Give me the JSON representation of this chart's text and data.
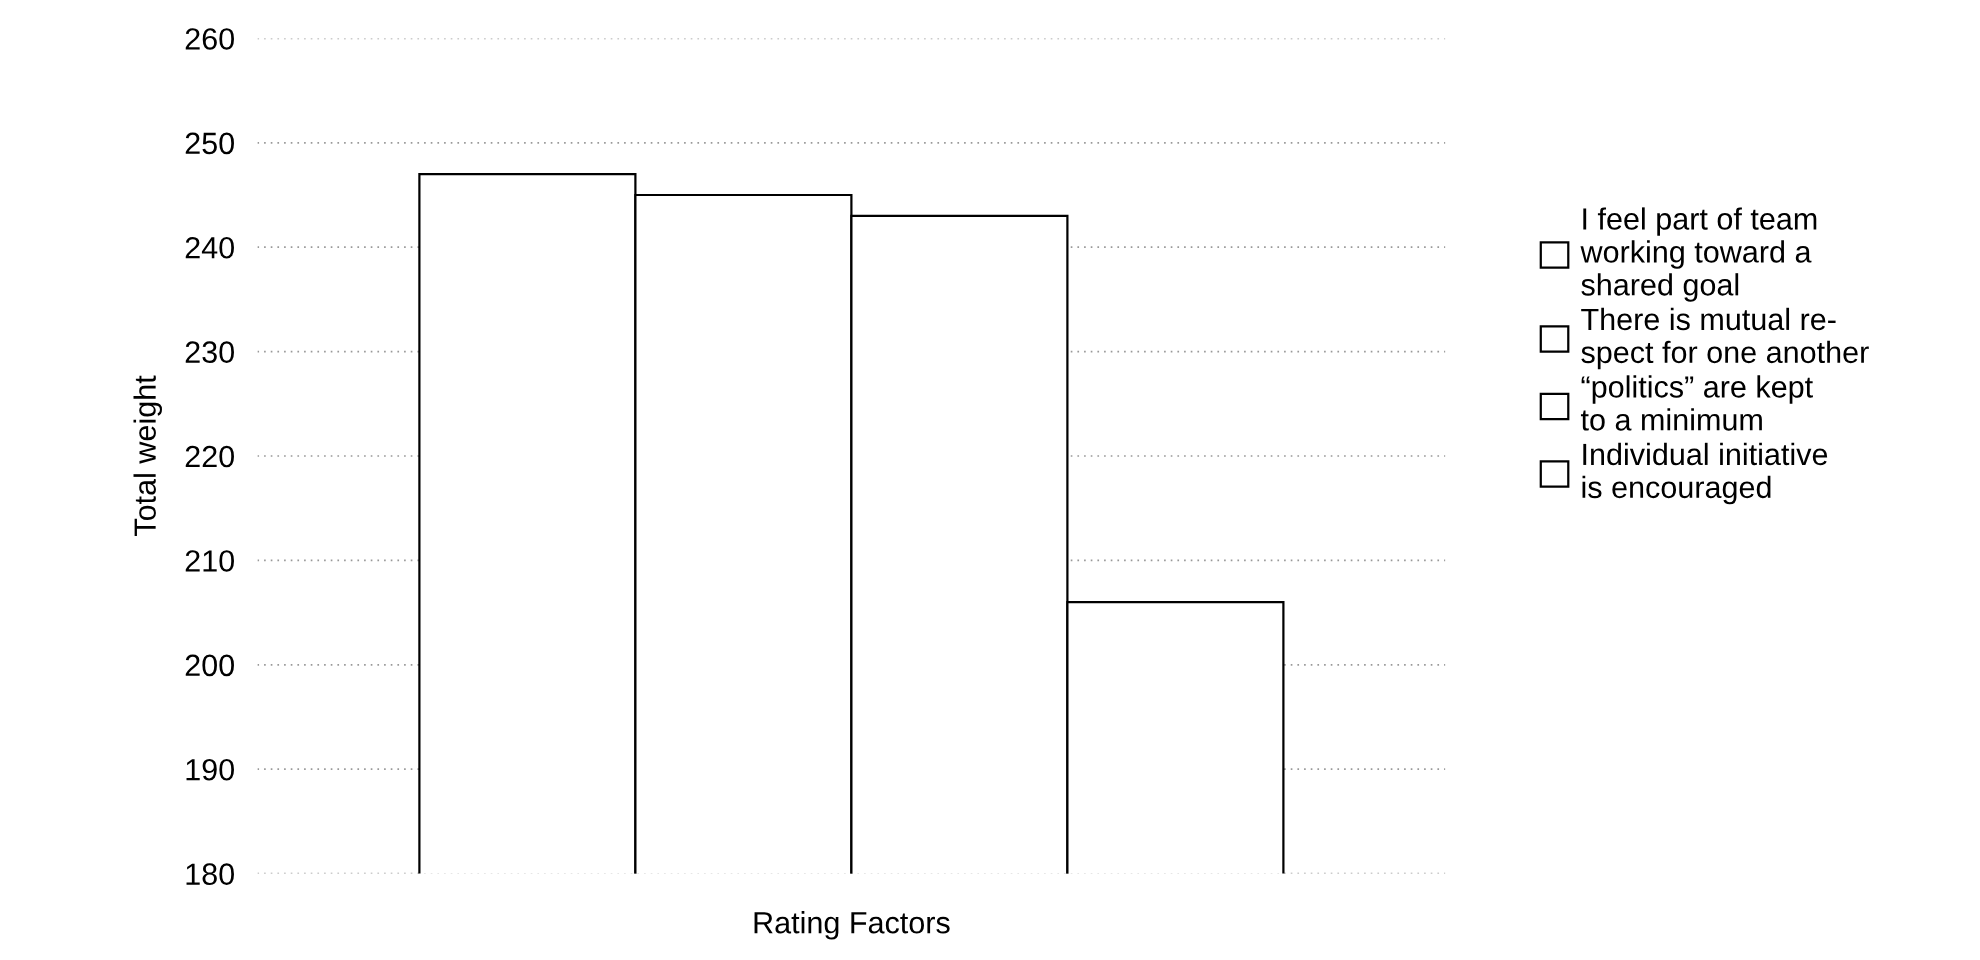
{
  "chart_data": {
    "type": "bar",
    "xlabel": "Rating Factors",
    "ylabel": "Total weight",
    "categories": [
      null
    ],
    "series": [
      {
        "name": "I feel part of team\nworking toward a\nshared goal",
        "color": "#ffffff",
        "values": [
          247
        ]
      },
      {
        "name": "There is mutual re-\nspect for one another",
        "color": "#ffffff",
        "values": [
          245
        ]
      },
      {
        "name": "“politics” are kept\nto a minimum",
        "color": "#ffffff",
        "values": [
          243
        ]
      },
      {
        "name": "Individual initiative\nis encouraged",
        "color": "#ffffff",
        "values": [
          206
        ]
      }
    ],
    "ylim": [
      180,
      260
    ],
    "yticks": [
      180,
      190,
      200,
      210,
      220,
      230,
      240,
      250,
      260
    ],
    "grid": "y",
    "legend": "right"
  }
}
